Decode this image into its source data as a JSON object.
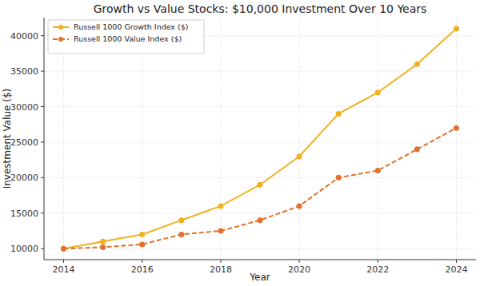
{
  "chart_data": {
    "type": "line",
    "title": "Growth vs Value Stocks: $10,000 Investment Over 10 Years",
    "x_label": "Year",
    "y_label": "Investment Value ($)",
    "x": [
      2014,
      2015,
      2016,
      2017,
      2018,
      2019,
      2020,
      2021,
      2022,
      2023,
      2024
    ],
    "series": [
      {
        "name": "Russell 1000 Growth Index ($)",
        "color": "#f2b01e",
        "marker": "circle",
        "line_style": "solid",
        "values": [
          10000,
          11000,
          12000,
          14000,
          16000,
          19000,
          23000,
          29000,
          32000,
          36000,
          41000
        ]
      },
      {
        "name": "Russell 1000 Value Index ($)",
        "color": "#e3702d",
        "marker": "circle",
        "line_style": "dashed",
        "values": [
          10000,
          10200,
          10600,
          12000,
          12500,
          14000,
          16000,
          20000,
          21000,
          24000,
          27000
        ]
      }
    ],
    "xlim": [
      2013.5,
      2024.5
    ],
    "xticks": [
      2014,
      2016,
      2018,
      2020,
      2022,
      2024
    ],
    "ylim": [
      8450,
      42550
    ],
    "yticks": [
      10000,
      15000,
      20000,
      25000,
      30000,
      35000,
      40000
    ],
    "grid": true,
    "legend": "upper left"
  }
}
